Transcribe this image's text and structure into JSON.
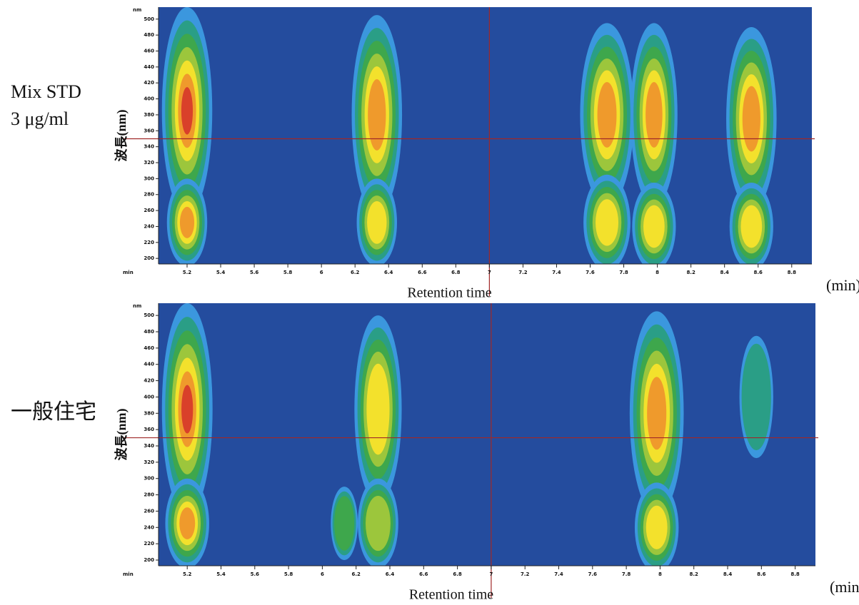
{
  "chart_data": [
    {
      "type": "contour",
      "side_label": [
        "Mix STD",
        "3 μg/ml"
      ],
      "y_label": "波長(nm)",
      "y_unit": "nm",
      "x_unit": "min",
      "x_label": "Retention time",
      "x_label_right": "(min)",
      "xlim": [
        5.03,
        8.92
      ],
      "ylim": [
        193,
        515
      ],
      "xticks": [
        5.2,
        5.4,
        5.6,
        5.8,
        6,
        6.2,
        6.4,
        6.6,
        6.8,
        7,
        7.2,
        7.4,
        7.6,
        7.8,
        8,
        8.2,
        8.4,
        8.6,
        8.8
      ],
      "yticks": [
        200,
        220,
        240,
        260,
        280,
        300,
        320,
        340,
        360,
        380,
        400,
        420,
        440,
        460,
        480,
        500
      ],
      "cursor": {
        "x": 7,
        "y": 350
      },
      "colors": [
        "#3b97de",
        "#2a9e86",
        "#3ea74c",
        "#9cc63c",
        "#f3e12c",
        "#ef9a2c",
        "#d9402a"
      ],
      "background": "#244c9e",
      "peaks": [
        {
          "x": 5.2,
          "y": 385,
          "sx": 0.15,
          "sy": 130,
          "level": 7
        },
        {
          "x": 5.2,
          "y": 245,
          "sx": 0.12,
          "sy": 55,
          "level": 6
        },
        {
          "x": 6.33,
          "y": 380,
          "sx": 0.15,
          "sy": 125,
          "level": 6
        },
        {
          "x": 6.33,
          "y": 245,
          "sx": 0.12,
          "sy": 55,
          "level": 5
        },
        {
          "x": 7.7,
          "y": 380,
          "sx": 0.16,
          "sy": 115,
          "level": 6
        },
        {
          "x": 7.7,
          "y": 245,
          "sx": 0.14,
          "sy": 60,
          "level": 5
        },
        {
          "x": 7.98,
          "y": 380,
          "sx": 0.14,
          "sy": 115,
          "level": 6
        },
        {
          "x": 7.98,
          "y": 240,
          "sx": 0.13,
          "sy": 55,
          "level": 5
        },
        {
          "x": 8.56,
          "y": 375,
          "sx": 0.15,
          "sy": 115,
          "level": 6
        },
        {
          "x": 8.56,
          "y": 240,
          "sx": 0.13,
          "sy": 55,
          "level": 5
        }
      ]
    },
    {
      "type": "contour",
      "side_label": [
        "一般住宅"
      ],
      "y_label": "波長(nm)",
      "y_unit": "nm",
      "x_unit": "min",
      "x_label": "Retention time",
      "x_label_right": "(min)",
      "xlim": [
        5.03,
        8.92
      ],
      "ylim": [
        193,
        515
      ],
      "xticks": [
        5.2,
        5.4,
        5.6,
        5.8,
        6,
        6.2,
        6.4,
        6.6,
        6.8,
        7,
        7.2,
        7.4,
        7.6,
        7.8,
        8,
        8.2,
        8.4,
        8.6,
        8.8
      ],
      "yticks": [
        200,
        220,
        240,
        260,
        280,
        300,
        320,
        340,
        360,
        380,
        400,
        420,
        440,
        460,
        480,
        500
      ],
      "cursor": {
        "x": 7,
        "y": 350
      },
      "colors": [
        "#3b97de",
        "#2a9e86",
        "#3ea74c",
        "#9cc63c",
        "#f3e12c",
        "#ef9a2c",
        "#d9402a"
      ],
      "background": "#244c9e",
      "peaks": [
        {
          "x": 5.2,
          "y": 385,
          "sx": 0.15,
          "sy": 130,
          "level": 7
        },
        {
          "x": 5.2,
          "y": 245,
          "sx": 0.13,
          "sy": 55,
          "level": 6
        },
        {
          "x": 6.33,
          "y": 385,
          "sx": 0.14,
          "sy": 115,
          "level": 5
        },
        {
          "x": 6.33,
          "y": 245,
          "sx": 0.12,
          "sy": 55,
          "level": 4
        },
        {
          "x": 6.13,
          "y": 245,
          "sx": 0.08,
          "sy": 45,
          "level": 3
        },
        {
          "x": 7.98,
          "y": 380,
          "sx": 0.16,
          "sy": 125,
          "level": 6
        },
        {
          "x": 7.98,
          "y": 240,
          "sx": 0.13,
          "sy": 55,
          "level": 5
        },
        {
          "x": 8.57,
          "y": 400,
          "sx": 0.1,
          "sy": 75,
          "level": 2
        }
      ]
    }
  ]
}
